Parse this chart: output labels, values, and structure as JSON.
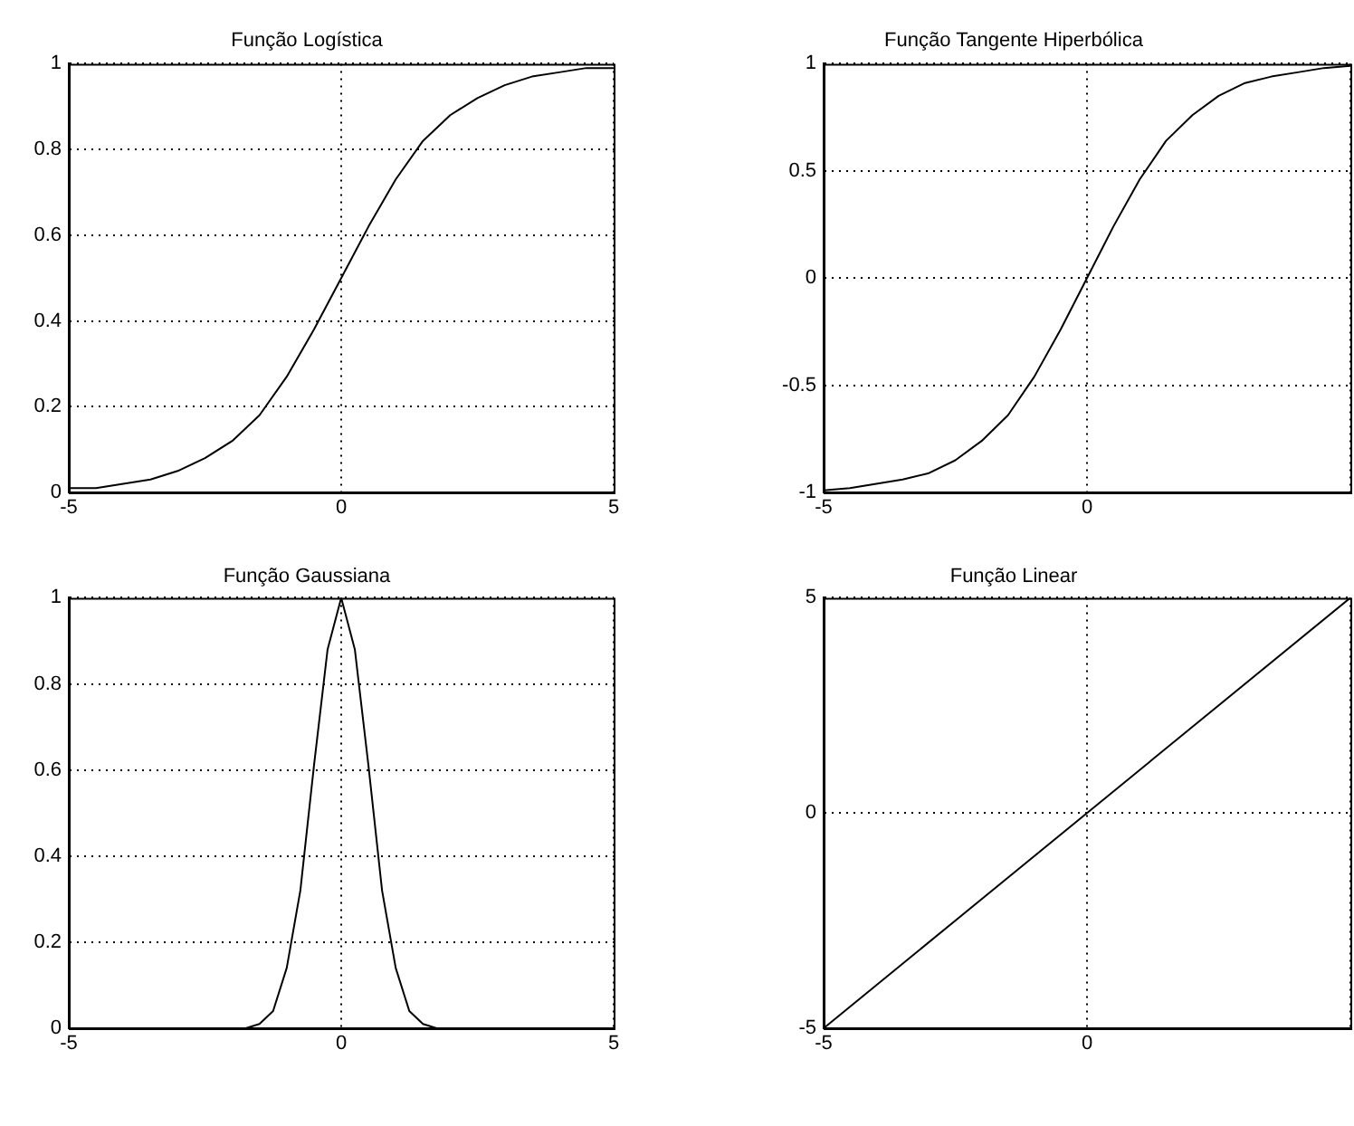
{
  "chart_data": [
    {
      "type": "line",
      "title": "Função Logística",
      "x": [
        -5,
        -4.5,
        -4,
        -3.5,
        -3,
        -2.5,
        -2,
        -1.5,
        -1,
        -0.5,
        0,
        0.5,
        1,
        1.5,
        2,
        2.5,
        3,
        3.5,
        4,
        4.5,
        5
      ],
      "series": [
        {
          "color": "#000000",
          "values": [
            0.01,
            0.01,
            0.02,
            0.03,
            0.05,
            0.08,
            0.12,
            0.18,
            0.27,
            0.38,
            0.5,
            0.62,
            0.73,
            0.82,
            0.88,
            0.92,
            0.95,
            0.97,
            0.98,
            0.99,
            0.99
          ]
        }
      ],
      "xlim": [
        -5,
        5
      ],
      "xticks": [
        -5,
        0,
        5
      ],
      "ylim": [
        0,
        1
      ],
      "yticks": [
        0,
        0.2,
        0.4,
        0.6,
        0.8,
        1
      ],
      "grid": true,
      "legend": false,
      "marker": "none",
      "line_style": "solid"
    },
    {
      "type": "line",
      "title": "Função Tangente Hiperbólica",
      "x": [
        -5,
        -4.5,
        -4,
        -3.5,
        -3,
        -2.5,
        -2,
        -1.5,
        -1,
        -0.5,
        0,
        0.5,
        1,
        1.5,
        2,
        2.5,
        3,
        3.5,
        4,
        4.5,
        5
      ],
      "series": [
        {
          "color": "#000000",
          "values": [
            -0.99,
            -0.98,
            -0.96,
            -0.94,
            -0.91,
            -0.85,
            -0.76,
            -0.64,
            -0.46,
            -0.24,
            0,
            0.24,
            0.46,
            0.64,
            0.76,
            0.85,
            0.91,
            0.94,
            0.96,
            0.98,
            0.99
          ]
        }
      ],
      "xlim": [
        -5,
        5
      ],
      "xticks": [
        -5,
        0,
        {
          "value": 5,
          "label": null
        }
      ],
      "ylim": [
        -1,
        1
      ],
      "yticks": [
        -1,
        -0.5,
        0,
        0.5,
        1
      ],
      "grid": true,
      "legend": false,
      "marker": "none",
      "line_style": "solid"
    },
    {
      "type": "line",
      "title": "Função Gaussiana",
      "x": [
        -5,
        -3,
        -2,
        -1.75,
        -1.5,
        -1.25,
        -1,
        -0.75,
        -0.5,
        -0.25,
        0,
        0.25,
        0.5,
        0.75,
        1,
        1.25,
        1.5,
        1.75,
        2,
        3,
        5
      ],
      "series": [
        {
          "color": "#000000",
          "values": [
            0,
            0,
            0,
            0,
            0.01,
            0.04,
            0.14,
            0.32,
            0.61,
            0.88,
            1,
            0.88,
            0.61,
            0.32,
            0.14,
            0.04,
            0.01,
            0,
            0,
            0,
            0
          ]
        }
      ],
      "xlim": [
        -5,
        5
      ],
      "xticks": [
        -5,
        0,
        5
      ],
      "ylim": [
        0,
        1
      ],
      "yticks": [
        0,
        0.2,
        0.4,
        0.6,
        0.8,
        1
      ],
      "grid": true,
      "legend": false,
      "marker": "none",
      "line_style": "solid"
    },
    {
      "type": "line",
      "title": "Função Linear",
      "x": [
        -5,
        5
      ],
      "series": [
        {
          "color": "#000000",
          "values": [
            -5,
            5
          ]
        }
      ],
      "xlim": [
        -5,
        5
      ],
      "xticks": [
        -5,
        0,
        {
          "value": 5,
          "label": null
        }
      ],
      "ylim": [
        -5,
        5
      ],
      "yticks": [
        -5,
        0,
        5
      ],
      "grid": true,
      "legend": false,
      "marker": "none",
      "line_style": "solid"
    }
  ]
}
